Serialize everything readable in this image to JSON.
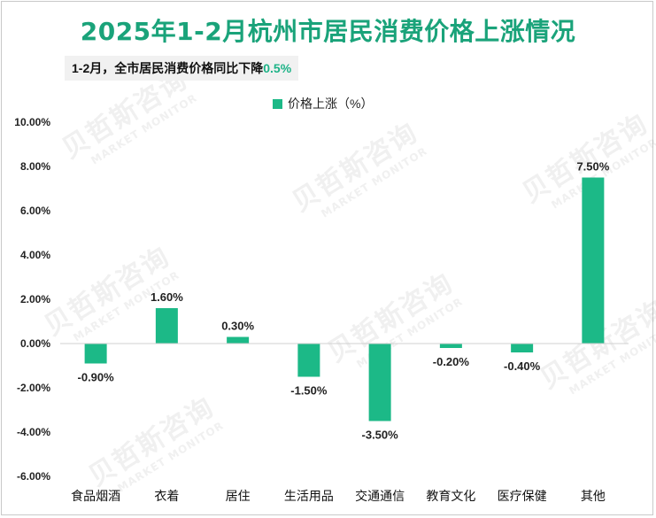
{
  "title": "2025年1-2月杭州市居民消费价格上涨情况",
  "subtitle": {
    "text": "1-2月，全市居民消费价格同比下降",
    "highlight": "0.5%"
  },
  "watermark": {
    "brand": "贝哲斯咨询",
    "sub": "MARKET MONITOR"
  },
  "colors": {
    "title": "#1aa37a",
    "bar": "#1cb987",
    "highlight": "#1db387",
    "axis": "#d0d0d0"
  },
  "chart_data": {
    "type": "bar",
    "legend_position": "top",
    "grid": false,
    "categories": [
      "食品烟酒",
      "衣着",
      "居住",
      "生活用品",
      "交通通信",
      "教育文化",
      "医疗保健",
      "其他"
    ],
    "series": [
      {
        "name": "价格上涨（%）",
        "values": [
          -0.9,
          1.6,
          0.3,
          -1.5,
          -3.5,
          -0.2,
          -0.4,
          7.5
        ],
        "labels": [
          "-0.90%",
          "1.60%",
          "0.30%",
          "-1.50%",
          "-3.50%",
          "-0.20%",
          "-0.40%",
          "7.50%"
        ]
      }
    ],
    "ylim": [
      -6,
      10
    ],
    "yticks": [
      "10.00%",
      "8.00%",
      "6.00%",
      "4.00%",
      "2.00%",
      "0.00%",
      "-2.00%",
      "-4.00%",
      "-6.00%"
    ],
    "ytick_values": [
      10,
      8,
      6,
      4,
      2,
      0,
      -2,
      -4,
      -6
    ]
  }
}
